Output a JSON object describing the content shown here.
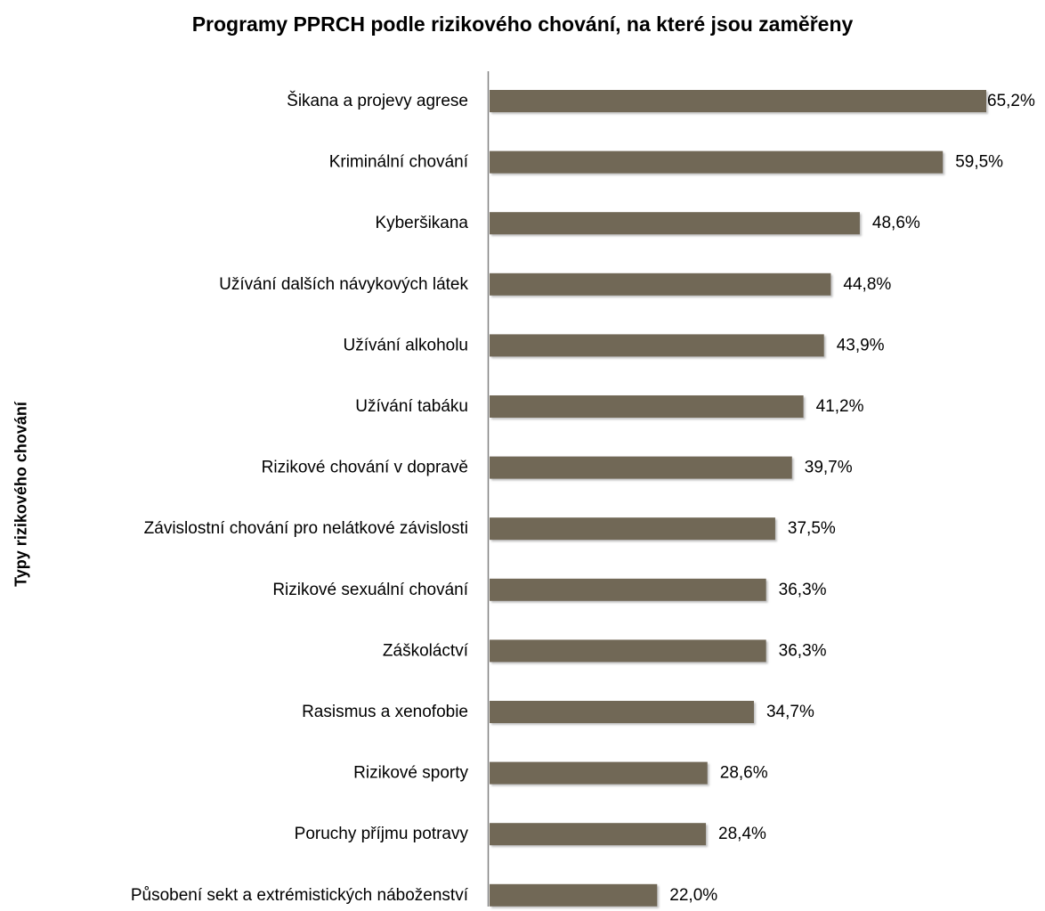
{
  "chart_data": {
    "type": "bar",
    "orientation": "horizontal",
    "title": "Programy PPRCH podle rizikového chování, na které jsou zaměřeny",
    "xlabel": "",
    "ylabel": "Typy rizikového chování",
    "xlim": [
      0,
      65.2
    ],
    "grid": false,
    "bar_color": "#716757",
    "categories": [
      "Šikana a projevy agrese",
      "Kriminální chování",
      "Kyberšikana",
      "Užívání dalších návykových látek",
      "Užívání alkoholu",
      "Užívání tabáku",
      "Rizikové chování v dopravě",
      "Závislostní chování pro nelátkové závislosti",
      "Rizikové sexuální chování",
      "Záškoláctví",
      "Rasismus a xenofobie",
      "Rizikové sporty",
      "Poruchy příjmu potravy",
      "Působení sekt a extrémistických náboženství"
    ],
    "values": [
      65.2,
      59.5,
      48.6,
      44.8,
      43.9,
      41.2,
      39.7,
      37.5,
      36.3,
      36.3,
      34.7,
      28.6,
      28.4,
      22.0
    ],
    "value_labels": [
      "65,2%",
      "59,5%",
      "48,6%",
      "44,8%",
      "43,9%",
      "41,2%",
      "39,7%",
      "37,5%",
      "36,3%",
      "36,3%",
      "34,7%",
      "28,6%",
      "28,4%",
      "22,0%"
    ]
  }
}
